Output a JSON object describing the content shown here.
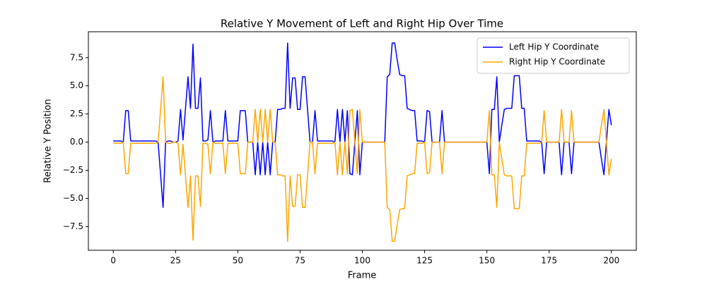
{
  "chart_data": {
    "type": "line",
    "title": "Relative Y Movement of Left and Right Hip Over Time",
    "x_label": "Frame",
    "y_label": "Relative Y Position",
    "x": [
      0,
      1,
      2,
      3,
      4,
      5,
      6,
      7,
      8,
      9,
      10,
      11,
      12,
      13,
      14,
      15,
      16,
      17,
      18,
      19,
      20,
      21,
      22,
      23,
      24,
      25,
      26,
      27,
      28,
      29,
      30,
      31,
      32,
      33,
      34,
      35,
      36,
      37,
      38,
      39,
      40,
      41,
      42,
      43,
      44,
      45,
      46,
      47,
      48,
      49,
      50,
      51,
      52,
      53,
      54,
      55,
      56,
      57,
      58,
      59,
      60,
      61,
      62,
      63,
      64,
      65,
      66,
      67,
      68,
      69,
      70,
      71,
      72,
      73,
      74,
      75,
      76,
      77,
      78,
      79,
      80,
      81,
      82,
      83,
      84,
      85,
      86,
      87,
      88,
      89,
      90,
      91,
      92,
      93,
      94,
      95,
      96,
      97,
      98,
      99,
      100,
      101,
      102,
      103,
      104,
      105,
      106,
      107,
      108,
      109,
      110,
      111,
      112,
      113,
      114,
      115,
      116,
      117,
      118,
      119,
      120,
      121,
      122,
      123,
      124,
      125,
      126,
      127,
      128,
      129,
      130,
      131,
      132,
      133,
      134,
      135,
      136,
      137,
      138,
      139,
      140,
      141,
      142,
      143,
      144,
      145,
      146,
      147,
      148,
      149,
      150,
      151,
      152,
      153,
      154,
      155,
      156,
      157,
      158,
      159,
      160,
      161,
      162,
      163,
      164,
      165,
      166,
      167,
      168,
      169,
      170,
      171,
      172,
      173,
      174,
      175,
      176,
      177,
      178,
      179,
      180,
      181,
      182,
      183,
      184,
      185,
      186,
      187,
      188,
      189,
      190,
      191,
      192,
      193,
      194,
      195,
      196,
      197,
      198,
      199,
      200
    ],
    "series": [
      {
        "name": "Left Hip Y Coordinate",
        "color": "#0000ff",
        "values": [
          0.1,
          0.1,
          0.1,
          0.1,
          0,
          2.8,
          2.8,
          0.1,
          0.1,
          0.1,
          0.1,
          0.1,
          0.1,
          0.1,
          0.1,
          0.1,
          0.1,
          0.1,
          0,
          -2.9,
          -5.8,
          0,
          0.1,
          0.1,
          0,
          0,
          0.1,
          2.9,
          0.2,
          3,
          5.8,
          3,
          8.7,
          3,
          3,
          5.7,
          0.1,
          0.1,
          0.2,
          2.8,
          0,
          0.1,
          0.1,
          0.1,
          0.1,
          2.8,
          0.1,
          0.1,
          0.1,
          0.1,
          0.1,
          2.8,
          2.8,
          2.8,
          0,
          0,
          0,
          -2.9,
          0,
          -2.9,
          0,
          -2.9,
          0,
          -2.9,
          0,
          0,
          2.9,
          2.9,
          3,
          3,
          8.8,
          3,
          5.7,
          5.7,
          2.9,
          2.9,
          5.8,
          5.8,
          2.9,
          0,
          0,
          2.8,
          0.1,
          0.1,
          0.1,
          0.1,
          0.1,
          0.1,
          0.1,
          0,
          2.9,
          0,
          2.9,
          0,
          2.8,
          -2.8,
          -2.9,
          0,
          2.8,
          -2.9,
          0,
          0,
          0,
          0,
          0,
          0,
          0,
          0,
          0,
          0,
          5.8,
          6,
          8.8,
          8.8,
          7.3,
          6,
          5.9,
          5.9,
          3,
          2.9,
          2.8,
          2.8,
          0.1,
          0.1,
          0.1,
          0,
          2.8,
          2.7,
          0,
          0,
          0,
          0,
          2.8,
          0,
          0,
          0,
          0,
          0,
          0,
          0,
          0,
          0,
          0,
          0,
          0,
          0,
          0,
          0,
          0,
          0,
          0,
          -2.8,
          2.9,
          2.9,
          5.8,
          0,
          1.5,
          2.9,
          3,
          3,
          3,
          5.9,
          5.9,
          5.9,
          3,
          3,
          0.1,
          0.1,
          0.1,
          0.1,
          0.1,
          0.1,
          0,
          -2.8,
          0,
          0,
          0,
          0,
          0,
          0,
          -2.9,
          0,
          0,
          0,
          -2.8,
          0,
          0,
          0,
          0,
          0,
          0,
          0,
          0,
          0,
          0,
          0,
          -1.5,
          -2.9,
          0,
          2.9,
          1.5
        ]
      },
      {
        "name": "Right Hip Y Coordinate",
        "color": "#ffa500",
        "values": [
          -0.1,
          -0.1,
          -0.1,
          -0.1,
          0,
          -2.8,
          -2.8,
          -0.1,
          -0.1,
          -0.1,
          -0.1,
          -0.1,
          -0.1,
          -0.1,
          -0.1,
          -0.1,
          -0.1,
          -0.1,
          0,
          2.9,
          5.8,
          0,
          -0.1,
          -0.1,
          0,
          0,
          -0.1,
          -2.9,
          -0.2,
          -3,
          -5.8,
          -3,
          -8.7,
          -3,
          -3,
          -5.7,
          -0.1,
          -0.1,
          -0.2,
          -2.8,
          0,
          -0.1,
          -0.1,
          -0.1,
          -0.1,
          -2.8,
          -0.1,
          -0.1,
          -0.1,
          -0.1,
          -0.1,
          -2.8,
          -2.8,
          -2.8,
          0,
          0,
          0,
          2.9,
          0,
          2.9,
          0,
          2.9,
          0,
          2.9,
          0,
          0,
          -2.9,
          -2.9,
          -3,
          -3,
          -8.8,
          -3,
          -5.7,
          -5.7,
          -2.9,
          -2.9,
          -5.8,
          -5.8,
          -2.9,
          0,
          0,
          -2.8,
          -0.1,
          -0.1,
          -0.1,
          -0.1,
          -0.1,
          -0.1,
          -0.1,
          0,
          -2.9,
          0,
          -2.9,
          0,
          -2.8,
          2.8,
          2.9,
          0,
          -2.8,
          2.9,
          0,
          0,
          0,
          0,
          0,
          0,
          0,
          0,
          0,
          0,
          -5.8,
          -6,
          -8.8,
          -8.8,
          -7.3,
          -6,
          -5.9,
          -5.9,
          -3,
          -2.9,
          -2.8,
          -2.8,
          -0.1,
          -0.1,
          -0.1,
          0,
          -2.8,
          -2.7,
          0,
          0,
          0,
          0,
          -2.8,
          0,
          0,
          0,
          0,
          0,
          0,
          0,
          0,
          0,
          0,
          0,
          0,
          0,
          0,
          0,
          0,
          0,
          0,
          2.8,
          -2.9,
          -2.9,
          -5.8,
          0,
          -1.5,
          -2.9,
          -3,
          -3,
          -3,
          -5.9,
          -5.9,
          -5.9,
          -3,
          -3,
          -0.1,
          -0.1,
          -0.1,
          -0.1,
          -0.1,
          -0.1,
          0,
          2.8,
          0,
          0,
          0,
          0,
          0,
          0,
          2.9,
          0,
          0,
          0,
          2.8,
          0,
          0,
          0,
          0,
          0,
          0,
          0,
          0,
          0,
          0,
          0,
          1.5,
          2.9,
          0,
          -2.9,
          -1.5
        ]
      }
    ],
    "xlim": [
      -10,
      210
    ],
    "xticks": [
      0,
      25,
      50,
      75,
      100,
      125,
      150,
      175,
      200
    ],
    "ylim": [
      -9.6,
      9.8
    ],
    "yticks": [
      {
        "value": -7.5,
        "label": "−7.5"
      },
      {
        "value": -5,
        "label": "−5.0"
      },
      {
        "value": -2.5,
        "label": "−2.5"
      },
      {
        "value": 0,
        "label": "0.0"
      },
      {
        "value": 2.5,
        "label": "2.5"
      },
      {
        "value": 5,
        "label": "5.0"
      },
      {
        "value": 7.5,
        "label": "7.5"
      }
    ],
    "legend": "upper right"
  }
}
